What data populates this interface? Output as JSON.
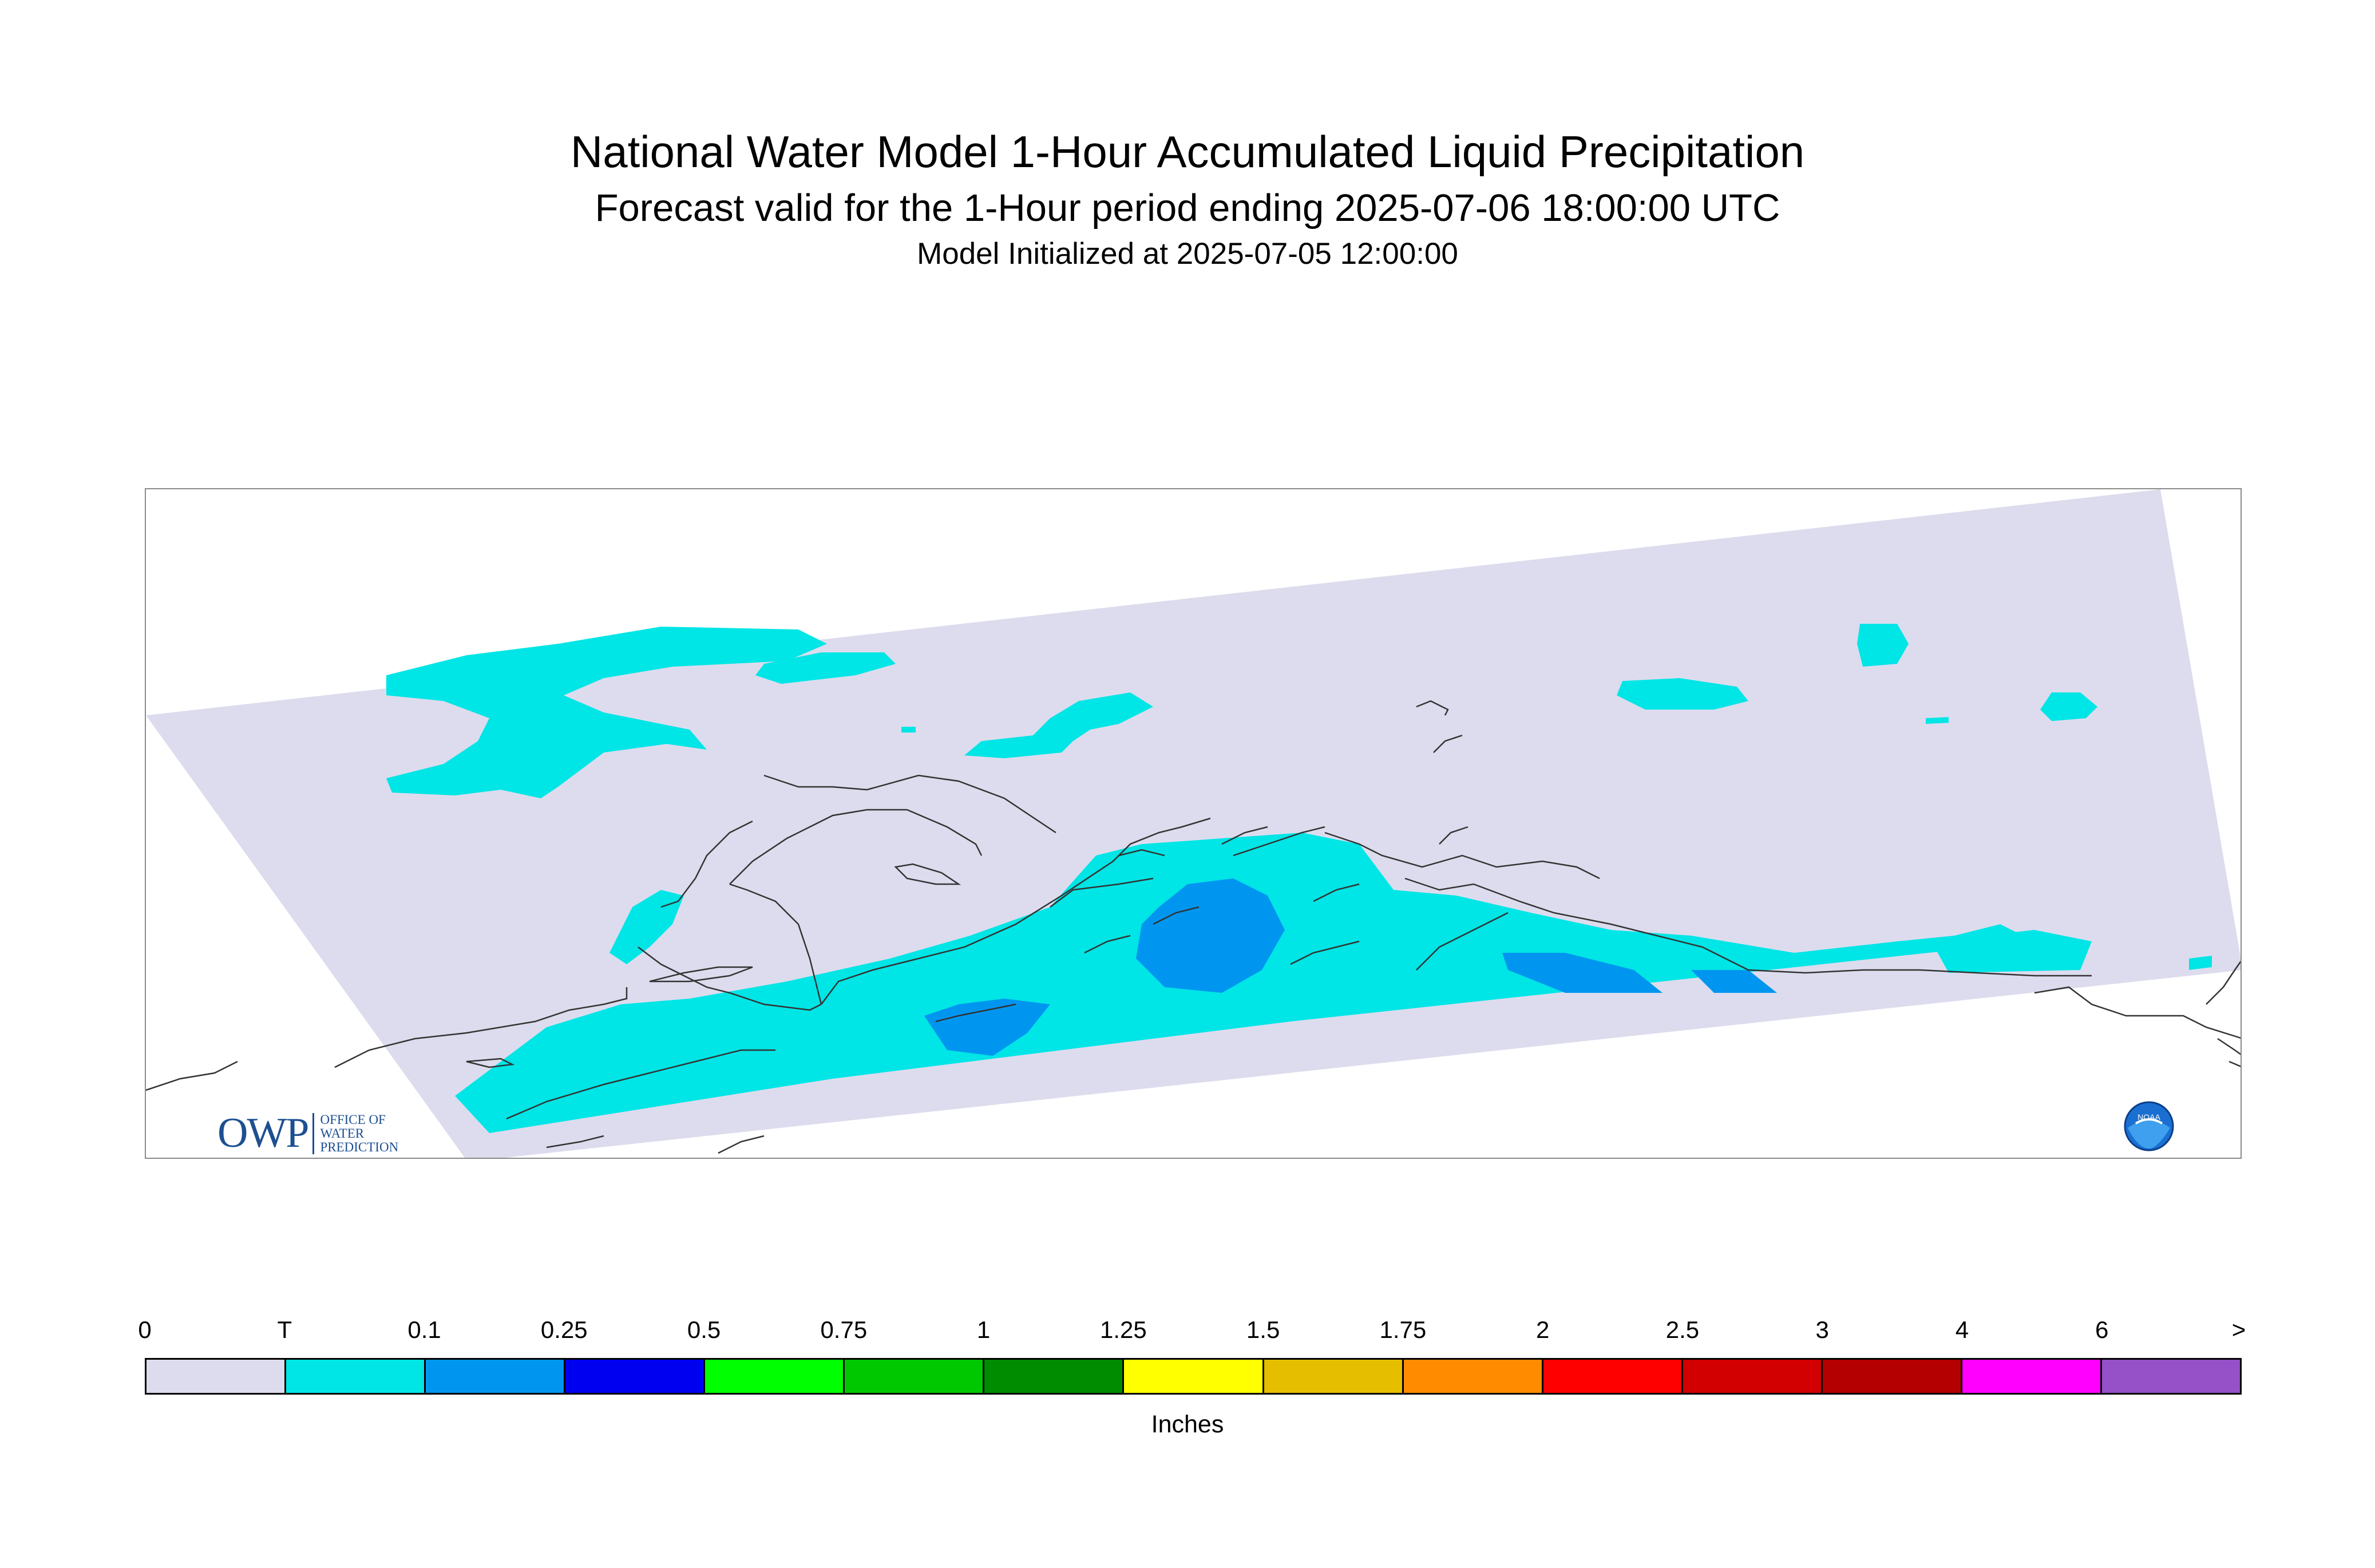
{
  "header": {
    "title": "National Water Model 1-Hour Accumulated Liquid Precipitation",
    "subtitle": "Forecast valid for the 1-Hour period ending 2025-07-06 18:00:00 UTC",
    "init": "Model Initialized at 2025-07-05 12:00:00"
  },
  "legend": {
    "labels": [
      "0",
      "T",
      "0.1",
      "0.25",
      "0.5",
      "0.75",
      "1",
      "1.25",
      "1.5",
      "1.75",
      "2",
      "2.5",
      "3",
      "4",
      "6",
      ">"
    ],
    "colors": [
      "#dcdcee",
      "#00e5e5",
      "#0096f0",
      "#0000f0",
      "#00ff00",
      "#00c800",
      "#008c00",
      "#ffff00",
      "#e6be00",
      "#ff8c00",
      "#ff0000",
      "#d20000",
      "#b40000",
      "#ff00ff",
      "#9650c8"
    ],
    "units": "Inches"
  },
  "logos": {
    "owp_text": "OWP",
    "owp_sub": [
      "OFFICE OF",
      "WATER",
      "PREDICTION"
    ],
    "noaa_text": "NOAA"
  },
  "map": {
    "colors": {
      "zero": "#dcdcee",
      "trace": "#00e5e5",
      "light": "#0096f0",
      "coast": "#333333"
    }
  }
}
